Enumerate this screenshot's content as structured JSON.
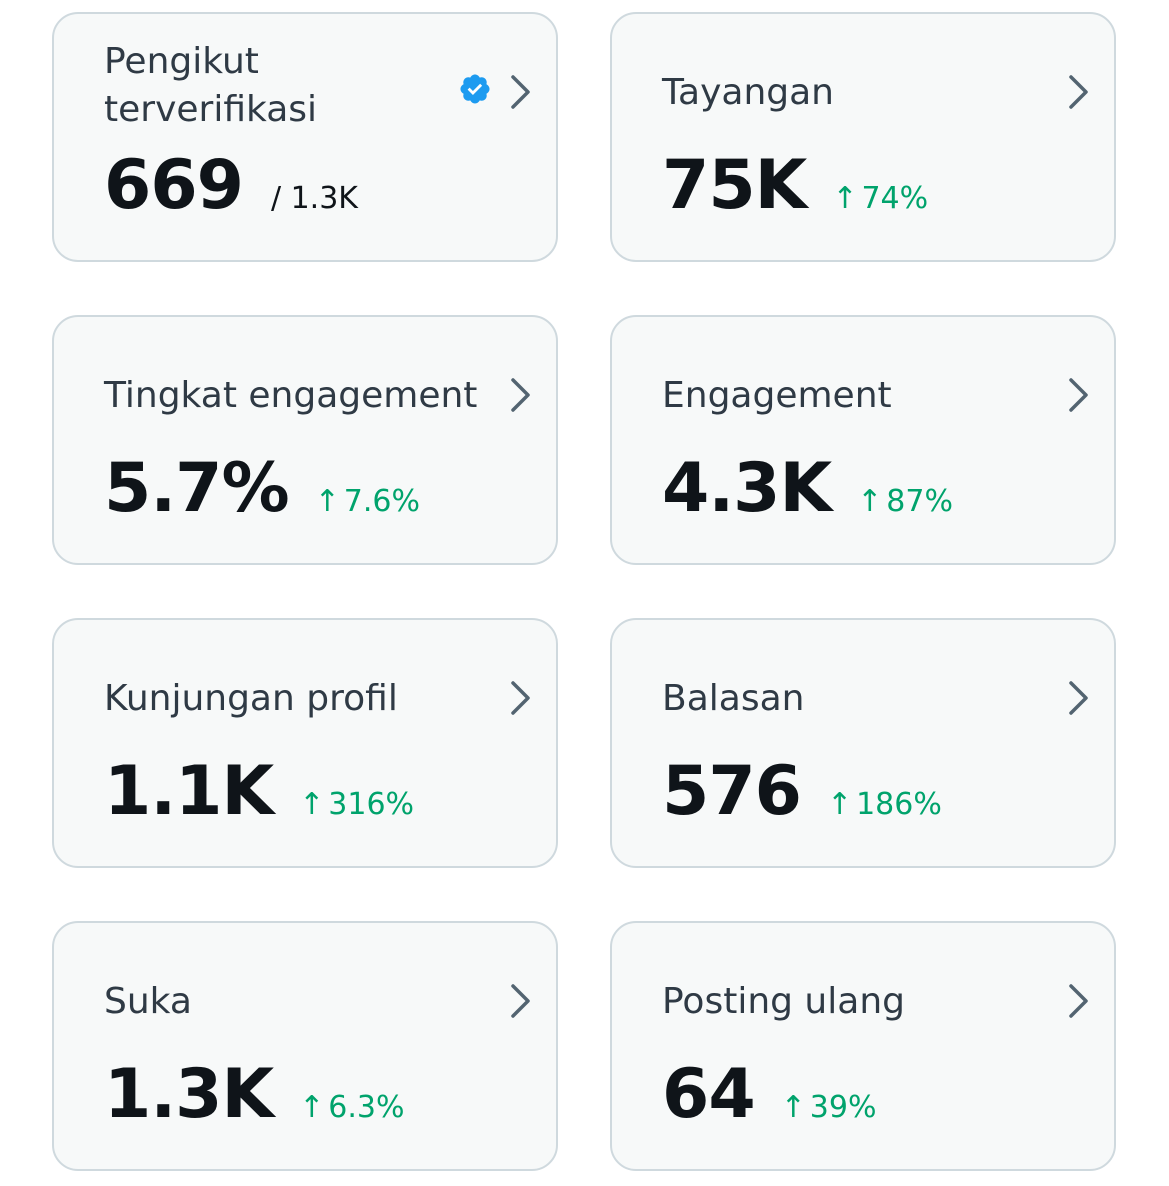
{
  "accent_colors": {
    "positive": "#00a36c",
    "verified": "#1d9bf0",
    "border": "#cfd9de",
    "card_background": "#f7f9f9"
  },
  "cards": [
    {
      "title": "Pengikut terverifikasi",
      "value": "669",
      "sub": "/ 1.3K",
      "verified_icon": "verified-badge-icon"
    },
    {
      "title": "Tayangan",
      "value": "75K",
      "delta": "74%",
      "delta_icon": "arrow-up-icon"
    },
    {
      "title": "Tingkat engagement",
      "value": "5.7%",
      "delta": "7.6%",
      "delta_icon": "arrow-up-icon"
    },
    {
      "title": "Engagement",
      "value": "4.3K",
      "delta": "87%",
      "delta_icon": "arrow-up-icon"
    },
    {
      "title": "Kunjungan profil",
      "value": "1.1K",
      "delta": "316%",
      "delta_icon": "arrow-up-icon"
    },
    {
      "title": "Balasan",
      "value": "576",
      "delta": "186%",
      "delta_icon": "arrow-up-icon"
    },
    {
      "title": "Suka",
      "value": "1.3K",
      "delta": "6.3%",
      "delta_icon": "arrow-up-icon"
    },
    {
      "title": "Posting ulang",
      "value": "64",
      "delta": "39%",
      "delta_icon": "arrow-up-icon"
    }
  ]
}
